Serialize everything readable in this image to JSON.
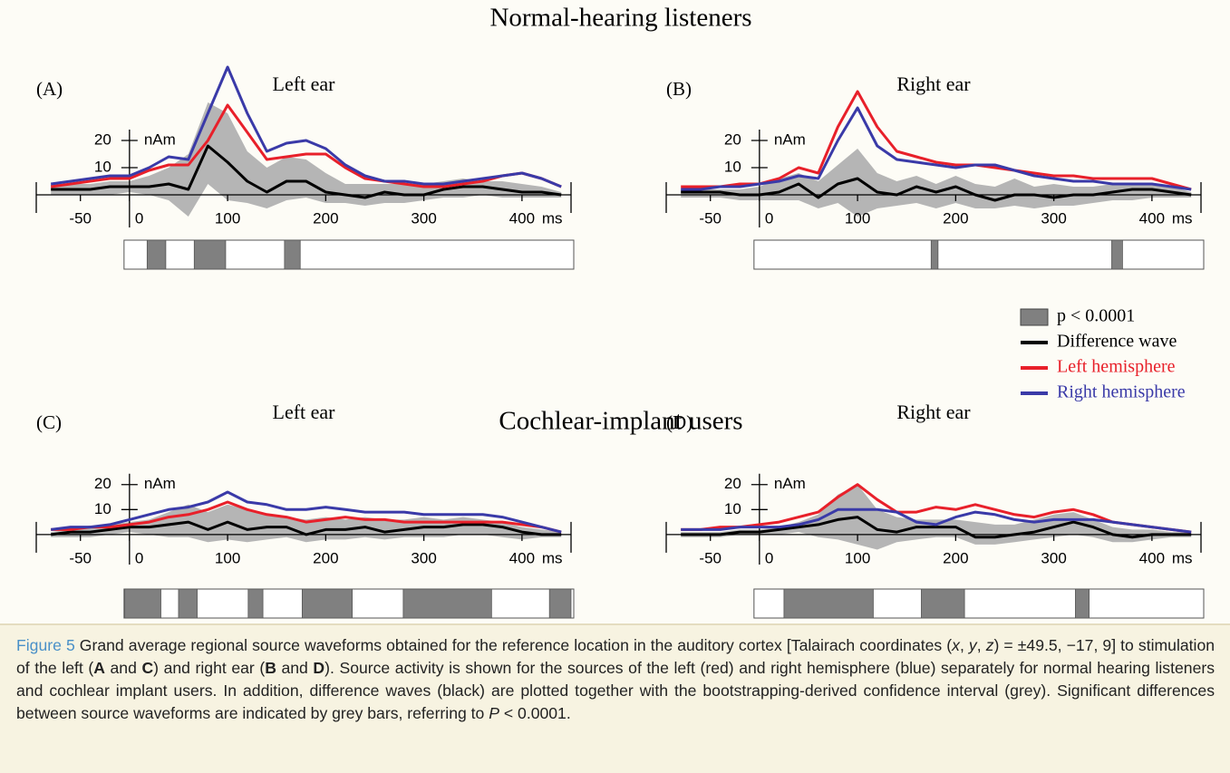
{
  "groups": [
    "Normal-hearing listeners",
    "Cochlear-implant users"
  ],
  "legend": {
    "significance": "p < 0.0001",
    "significance_color": "#808080"
  },
  "chart_data": [
    {
      "type": "line",
      "panel_label": "(A)",
      "title": "Left ear",
      "x": [
        -80,
        -60,
        -40,
        -20,
        0,
        20,
        40,
        60,
        80,
        100,
        120,
        140,
        160,
        180,
        200,
        220,
        240,
        260,
        280,
        300,
        320,
        340,
        360,
        380,
        400,
        420,
        440
      ],
      "xlim": [
        -95,
        450
      ],
      "xticks": [
        -50,
        0,
        100,
        200,
        300,
        400
      ],
      "x_unit": "ms",
      "ylim": [
        -12,
        50
      ],
      "yticks": [
        10,
        20
      ],
      "y_unit": "nAm",
      "band": {
        "color": "#b5b5b5",
        "lower": [
          0,
          0,
          0,
          0,
          1,
          0,
          -2,
          -8,
          4,
          -2,
          -3,
          -5,
          -2,
          -1,
          -3,
          -3,
          -4,
          -3,
          -3,
          -2,
          -1,
          -1,
          0,
          -1,
          -1,
          -1,
          -1
        ],
        "upper": [
          4,
          4,
          4,
          5,
          5,
          7,
          10,
          15,
          34,
          30,
          16,
          10,
          14,
          13,
          8,
          4,
          4,
          4,
          4,
          4,
          5,
          6,
          5,
          5,
          4,
          3,
          1
        ]
      },
      "series": [
        {
          "name": "Difference wave",
          "color": "#000000",
          "values": [
            2,
            2,
            2,
            3,
            3,
            3,
            4,
            2,
            18,
            12,
            5,
            1,
            5,
            5,
            1,
            0,
            -1,
            1,
            0,
            0,
            2,
            3,
            3,
            2,
            1,
            1,
            0
          ]
        },
        {
          "name": "Left hemisphere",
          "color": "#e8202a",
          "values": [
            3,
            4,
            5,
            6,
            6,
            9,
            11,
            11,
            20,
            33,
            23,
            13,
            14,
            15,
            15,
            10,
            6,
            5,
            4,
            3,
            3,
            4,
            5,
            7,
            8,
            6,
            3
          ]
        },
        {
          "name": "Right hemisphere",
          "color": "#3a3aa8",
          "values": [
            4,
            5,
            6,
            7,
            7,
            10,
            14,
            13,
            30,
            47,
            30,
            16,
            19,
            20,
            17,
            11,
            7,
            5,
            5,
            4,
            4,
            5,
            6,
            7,
            8,
            6,
            3
          ]
        }
      ],
      "significance": [
        [
          18,
          37
        ],
        [
          66,
          98
        ],
        [
          158,
          174
        ]
      ]
    },
    {
      "type": "line",
      "panel_label": "(B)",
      "title": "Right ear",
      "x": [
        -80,
        -60,
        -40,
        -20,
        0,
        20,
        40,
        60,
        80,
        100,
        120,
        140,
        160,
        180,
        200,
        220,
        240,
        260,
        280,
        300,
        320,
        340,
        360,
        380,
        400,
        420,
        440
      ],
      "xlim": [
        -95,
        450
      ],
      "xticks": [
        -50,
        0,
        100,
        200,
        300,
        400
      ],
      "x_unit": "ms",
      "ylim": [
        -12,
        50
      ],
      "yticks": [
        10,
        20
      ],
      "y_unit": "nAm",
      "band": {
        "color": "#b5b5b5",
        "lower": [
          -1,
          -1,
          -1,
          -2,
          -2,
          -2,
          -2,
          -5,
          -3,
          -8,
          -5,
          -4,
          -3,
          -5,
          -3,
          -5,
          -5,
          -4,
          -5,
          -4,
          -4,
          -3,
          -2,
          -2,
          -1,
          -1,
          -1
        ],
        "upper": [
          2,
          2,
          2,
          2,
          3,
          6,
          8,
          5,
          11,
          17,
          8,
          5,
          7,
          4,
          7,
          4,
          3,
          6,
          3,
          4,
          3,
          3,
          4,
          4,
          4,
          3,
          1
        ]
      },
      "series": [
        {
          "color": "#000000",
          "values": [
            1,
            1,
            1,
            0,
            0,
            1,
            4,
            -1,
            4,
            6,
            1,
            0,
            3,
            1,
            3,
            0,
            -2,
            0,
            0,
            -1,
            0,
            0,
            1,
            2,
            2,
            1,
            0
          ]
        },
        {
          "color": "#e8202a",
          "values": [
            3,
            3,
            3,
            4,
            4,
            6,
            10,
            8,
            25,
            38,
            25,
            16,
            14,
            12,
            11,
            11,
            10,
            9,
            8,
            7,
            7,
            6,
            6,
            6,
            6,
            4,
            2
          ]
        },
        {
          "color": "#3a3aa8",
          "values": [
            2,
            2,
            3,
            3,
            4,
            5,
            7,
            6,
            20,
            32,
            18,
            13,
            12,
            11,
            10,
            11,
            11,
            9,
            7,
            6,
            5,
            5,
            4,
            4,
            4,
            3,
            2
          ]
        }
      ],
      "significance": [
        [
          175,
          182
        ],
        [
          359,
          370
        ]
      ]
    },
    {
      "type": "line",
      "panel_label": "(C)",
      "title": "Left ear",
      "x": [
        -80,
        -60,
        -40,
        -20,
        0,
        20,
        40,
        60,
        80,
        100,
        120,
        140,
        160,
        180,
        200,
        220,
        240,
        260,
        280,
        300,
        320,
        340,
        360,
        380,
        400,
        420,
        440
      ],
      "xlim": [
        -95,
        450
      ],
      "xticks": [
        -50,
        0,
        100,
        200,
        300,
        400
      ],
      "x_unit": "ms",
      "ylim": [
        -12,
        50
      ],
      "yticks": [
        10,
        20
      ],
      "y_unit": "nAm",
      "band": {
        "color": "#b5b5b5",
        "lower": [
          -1,
          -1,
          -1,
          0,
          1,
          0,
          -1,
          -1,
          -3,
          -2,
          -3,
          -2,
          -1,
          -3,
          -2,
          -2,
          -1,
          -2,
          -1,
          -1,
          -1,
          0,
          0,
          -1,
          -2,
          -1,
          -1
        ],
        "upper": [
          1,
          2,
          3,
          4,
          5,
          6,
          9,
          12,
          9,
          12,
          10,
          8,
          7,
          6,
          7,
          6,
          7,
          6,
          6,
          7,
          6,
          7,
          6,
          5,
          3,
          2,
          1
        ]
      },
      "series": [
        {
          "color": "#000000",
          "values": [
            0,
            1,
            1,
            2,
            3,
            3,
            4,
            5,
            2,
            5,
            2,
            3,
            3,
            0,
            2,
            2,
            3,
            1,
            2,
            3,
            3,
            4,
            4,
            3,
            1,
            0,
            0
          ]
        },
        {
          "color": "#e8202a",
          "values": [
            2,
            2,
            3,
            3,
            4,
            5,
            7,
            8,
            10,
            13,
            10,
            8,
            7,
            5,
            6,
            7,
            6,
            6,
            5,
            5,
            5,
            5,
            5,
            5,
            4,
            3,
            1
          ]
        },
        {
          "color": "#3a3aa8",
          "values": [
            2,
            3,
            3,
            4,
            6,
            8,
            10,
            11,
            13,
            17,
            13,
            12,
            10,
            10,
            11,
            10,
            9,
            9,
            9,
            8,
            8,
            8,
            8,
            7,
            5,
            3,
            1
          ]
        }
      ],
      "significance": [
        [
          -5,
          32
        ],
        [
          50,
          69
        ],
        [
          121,
          136
        ],
        [
          176,
          227
        ],
        [
          279,
          369
        ],
        [
          428,
          450
        ]
      ]
    },
    {
      "type": "line",
      "panel_label": "(D)",
      "title": "Right ear",
      "x": [
        -80,
        -60,
        -40,
        -20,
        0,
        20,
        40,
        60,
        80,
        100,
        120,
        140,
        160,
        180,
        200,
        220,
        240,
        260,
        280,
        300,
        320,
        340,
        360,
        380,
        400,
        420,
        440
      ],
      "xlim": [
        -95,
        450
      ],
      "xticks": [
        -50,
        0,
        100,
        200,
        300,
        400
      ],
      "x_unit": "ms",
      "ylim": [
        -12,
        50
      ],
      "yticks": [
        10,
        20
      ],
      "y_unit": "nAm",
      "band": {
        "color": "#b5b5b5",
        "lower": [
          -1,
          -1,
          -1,
          0,
          0,
          0,
          1,
          -1,
          -2,
          -4,
          -6,
          -3,
          -2,
          -1,
          -1,
          -4,
          -4,
          -3,
          -2,
          -1,
          0,
          -1,
          -3,
          -3,
          -2,
          -1,
          -1
        ],
        "upper": [
          1,
          1,
          1,
          2,
          2,
          3,
          5,
          8,
          16,
          20,
          10,
          7,
          6,
          6,
          6,
          5,
          4,
          4,
          6,
          8,
          9,
          6,
          3,
          2,
          2,
          1,
          1
        ]
      },
      "series": [
        {
          "color": "#000000",
          "values": [
            0,
            0,
            0,
            1,
            1,
            2,
            3,
            4,
            6,
            7,
            2,
            1,
            3,
            3,
            3,
            -1,
            -1,
            0,
            1,
            3,
            5,
            3,
            0,
            -1,
            0,
            0,
            0
          ]
        },
        {
          "color": "#e8202a",
          "values": [
            2,
            2,
            3,
            3,
            4,
            5,
            7,
            9,
            15,
            20,
            14,
            9,
            9,
            11,
            10,
            12,
            10,
            8,
            7,
            9,
            10,
            8,
            5,
            4,
            3,
            2,
            1
          ]
        },
        {
          "color": "#3a3aa8",
          "values": [
            2,
            2,
            2,
            3,
            3,
            3,
            4,
            6,
            10,
            10,
            10,
            9,
            5,
            4,
            7,
            9,
            8,
            6,
            5,
            6,
            6,
            6,
            5,
            4,
            3,
            2,
            1
          ]
        }
      ],
      "significance": [
        [
          25,
          116
        ],
        [
          165,
          209
        ],
        [
          322,
          336
        ]
      ]
    }
  ],
  "caption": {
    "runs": [
      {
        "text": "Figure 5",
        "style": "label"
      },
      {
        "text": " Grand average regional source waveforms obtained for the reference location in the auditory cortex [Talairach coordinates ("
      },
      {
        "text": "x",
        "style": "italic"
      },
      {
        "text": ", "
      },
      {
        "text": "y",
        "style": "italic"
      },
      {
        "text": ", "
      },
      {
        "text": "z",
        "style": "italic"
      },
      {
        "text": ") = ±49.5, −17, 9] to stimulation of the left ("
      },
      {
        "text": "A",
        "style": "bold"
      },
      {
        "text": " and "
      },
      {
        "text": "C",
        "style": "bold"
      },
      {
        "text": ") and right ear ("
      },
      {
        "text": "B",
        "style": "bold"
      },
      {
        "text": " and "
      },
      {
        "text": "D",
        "style": "bold"
      },
      {
        "text": "). Source activity is shown for the sources of the left (red) and right hemisphere (blue) separately for normal hearing listeners and cochlear implant users. In addition, difference waves (black) are plotted together with the bootstrapping-derived confidence interval (grey). Significant differences between source waveforms are indicated by grey bars, referring to "
      },
      {
        "text": "P",
        "style": "italic"
      },
      {
        "text": " < 0.0001."
      }
    ]
  }
}
